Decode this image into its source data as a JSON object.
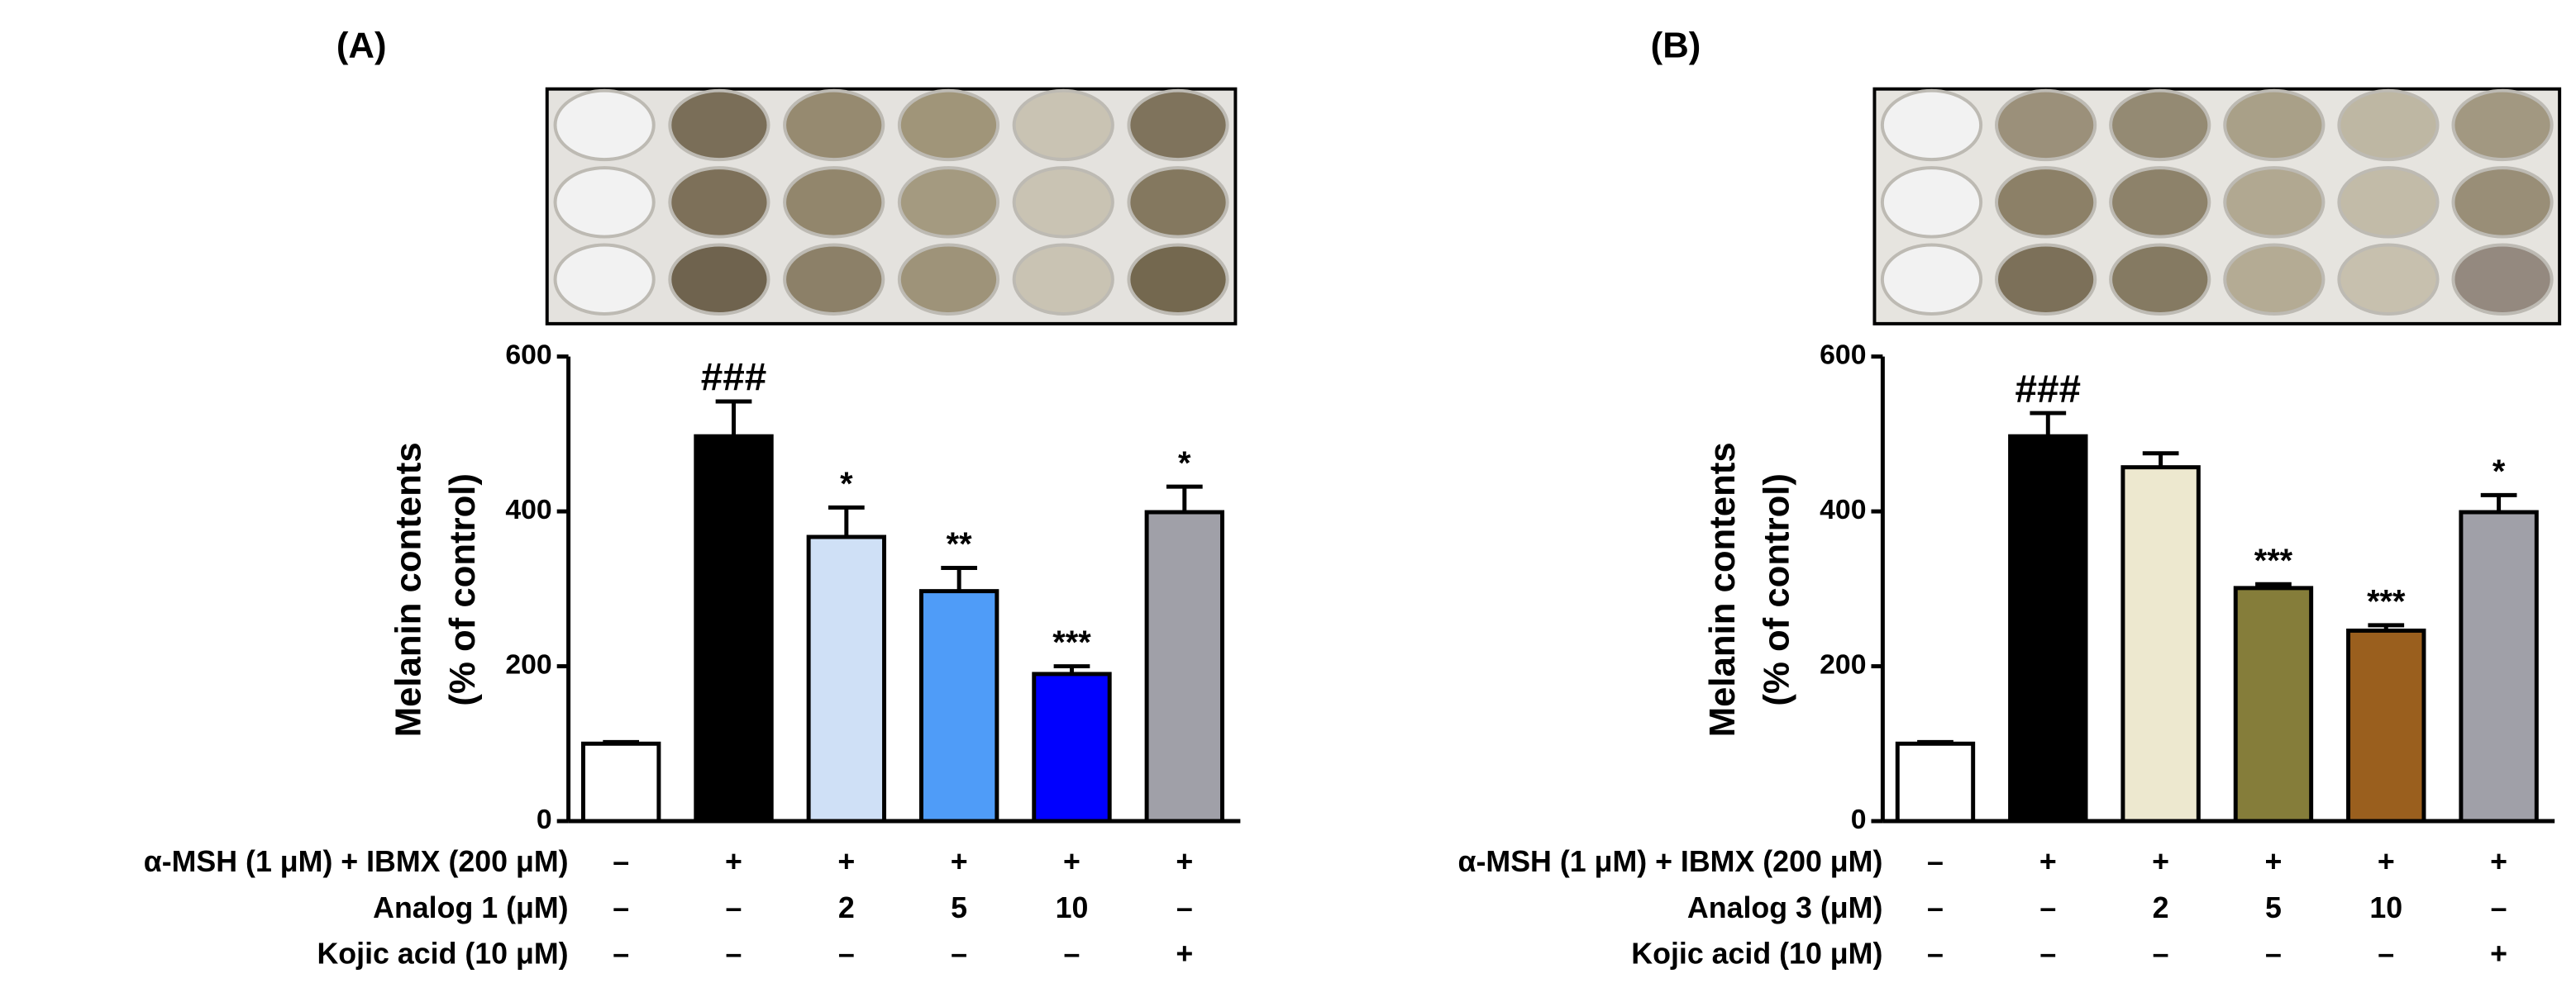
{
  "chart_data": [
    {
      "type": "bar",
      "title": "(A)",
      "ylabel": [
        "Melanin contents",
        "(% of control)"
      ],
      "values": [
        100,
        497,
        367,
        297,
        190,
        399
      ],
      "errors": [
        2,
        45,
        38,
        30,
        10,
        33
      ],
      "colors": [
        "#ffffff",
        "#000000",
        "#cfe0f6",
        "#4f9cf8",
        "#0000ff",
        "#a0a0a8"
      ],
      "annotations": [
        null,
        "###",
        "*",
        "**",
        "***",
        "*"
      ],
      "ylim": [
        0,
        600
      ],
      "yticks": [
        0,
        200,
        400,
        600
      ],
      "treatments": [
        {
          "label": "α-MSH (1 μM) + IBMX (200 μM)",
          "cells": [
            "–",
            "+",
            "+",
            "+",
            "+",
            "+"
          ]
        },
        {
          "label": "Analog 1 (μM)",
          "cells": [
            "–",
            "–",
            "2",
            "5",
            "10",
            "–"
          ]
        },
        {
          "label": "Kojic acid (10 μM)",
          "cells": [
            "–",
            "–",
            "–",
            "–",
            "–",
            "+"
          ]
        }
      ]
    },
    {
      "type": "bar",
      "title": "(B)",
      "ylabel": [
        "Melanin contents",
        "(% of control)"
      ],
      "values": [
        100,
        497,
        457,
        301,
        246,
        399
      ],
      "errors": [
        2,
        30,
        18,
        5,
        7,
        22
      ],
      "colors": [
        "#ffffff",
        "#000000",
        "#ede8cf",
        "#857d3a",
        "#9a5f1e",
        "#a0a0a8"
      ],
      "annotations": [
        null,
        "###",
        null,
        "***",
        "***",
        "*"
      ],
      "ylim": [
        0,
        600
      ],
      "yticks": [
        0,
        200,
        400,
        600
      ],
      "treatments": [
        {
          "label": "α-MSH (1 μM) + IBMX (200 μM)",
          "cells": [
            "–",
            "+",
            "+",
            "+",
            "+",
            "+"
          ]
        },
        {
          "label": "Analog 3 (μM)",
          "cells": [
            "–",
            "–",
            "2",
            "5",
            "10",
            "–"
          ]
        },
        {
          "label": "Kojic acid (10 μM)",
          "cells": [
            "–",
            "–",
            "–",
            "–",
            "–",
            "+"
          ]
        }
      ]
    }
  ]
}
